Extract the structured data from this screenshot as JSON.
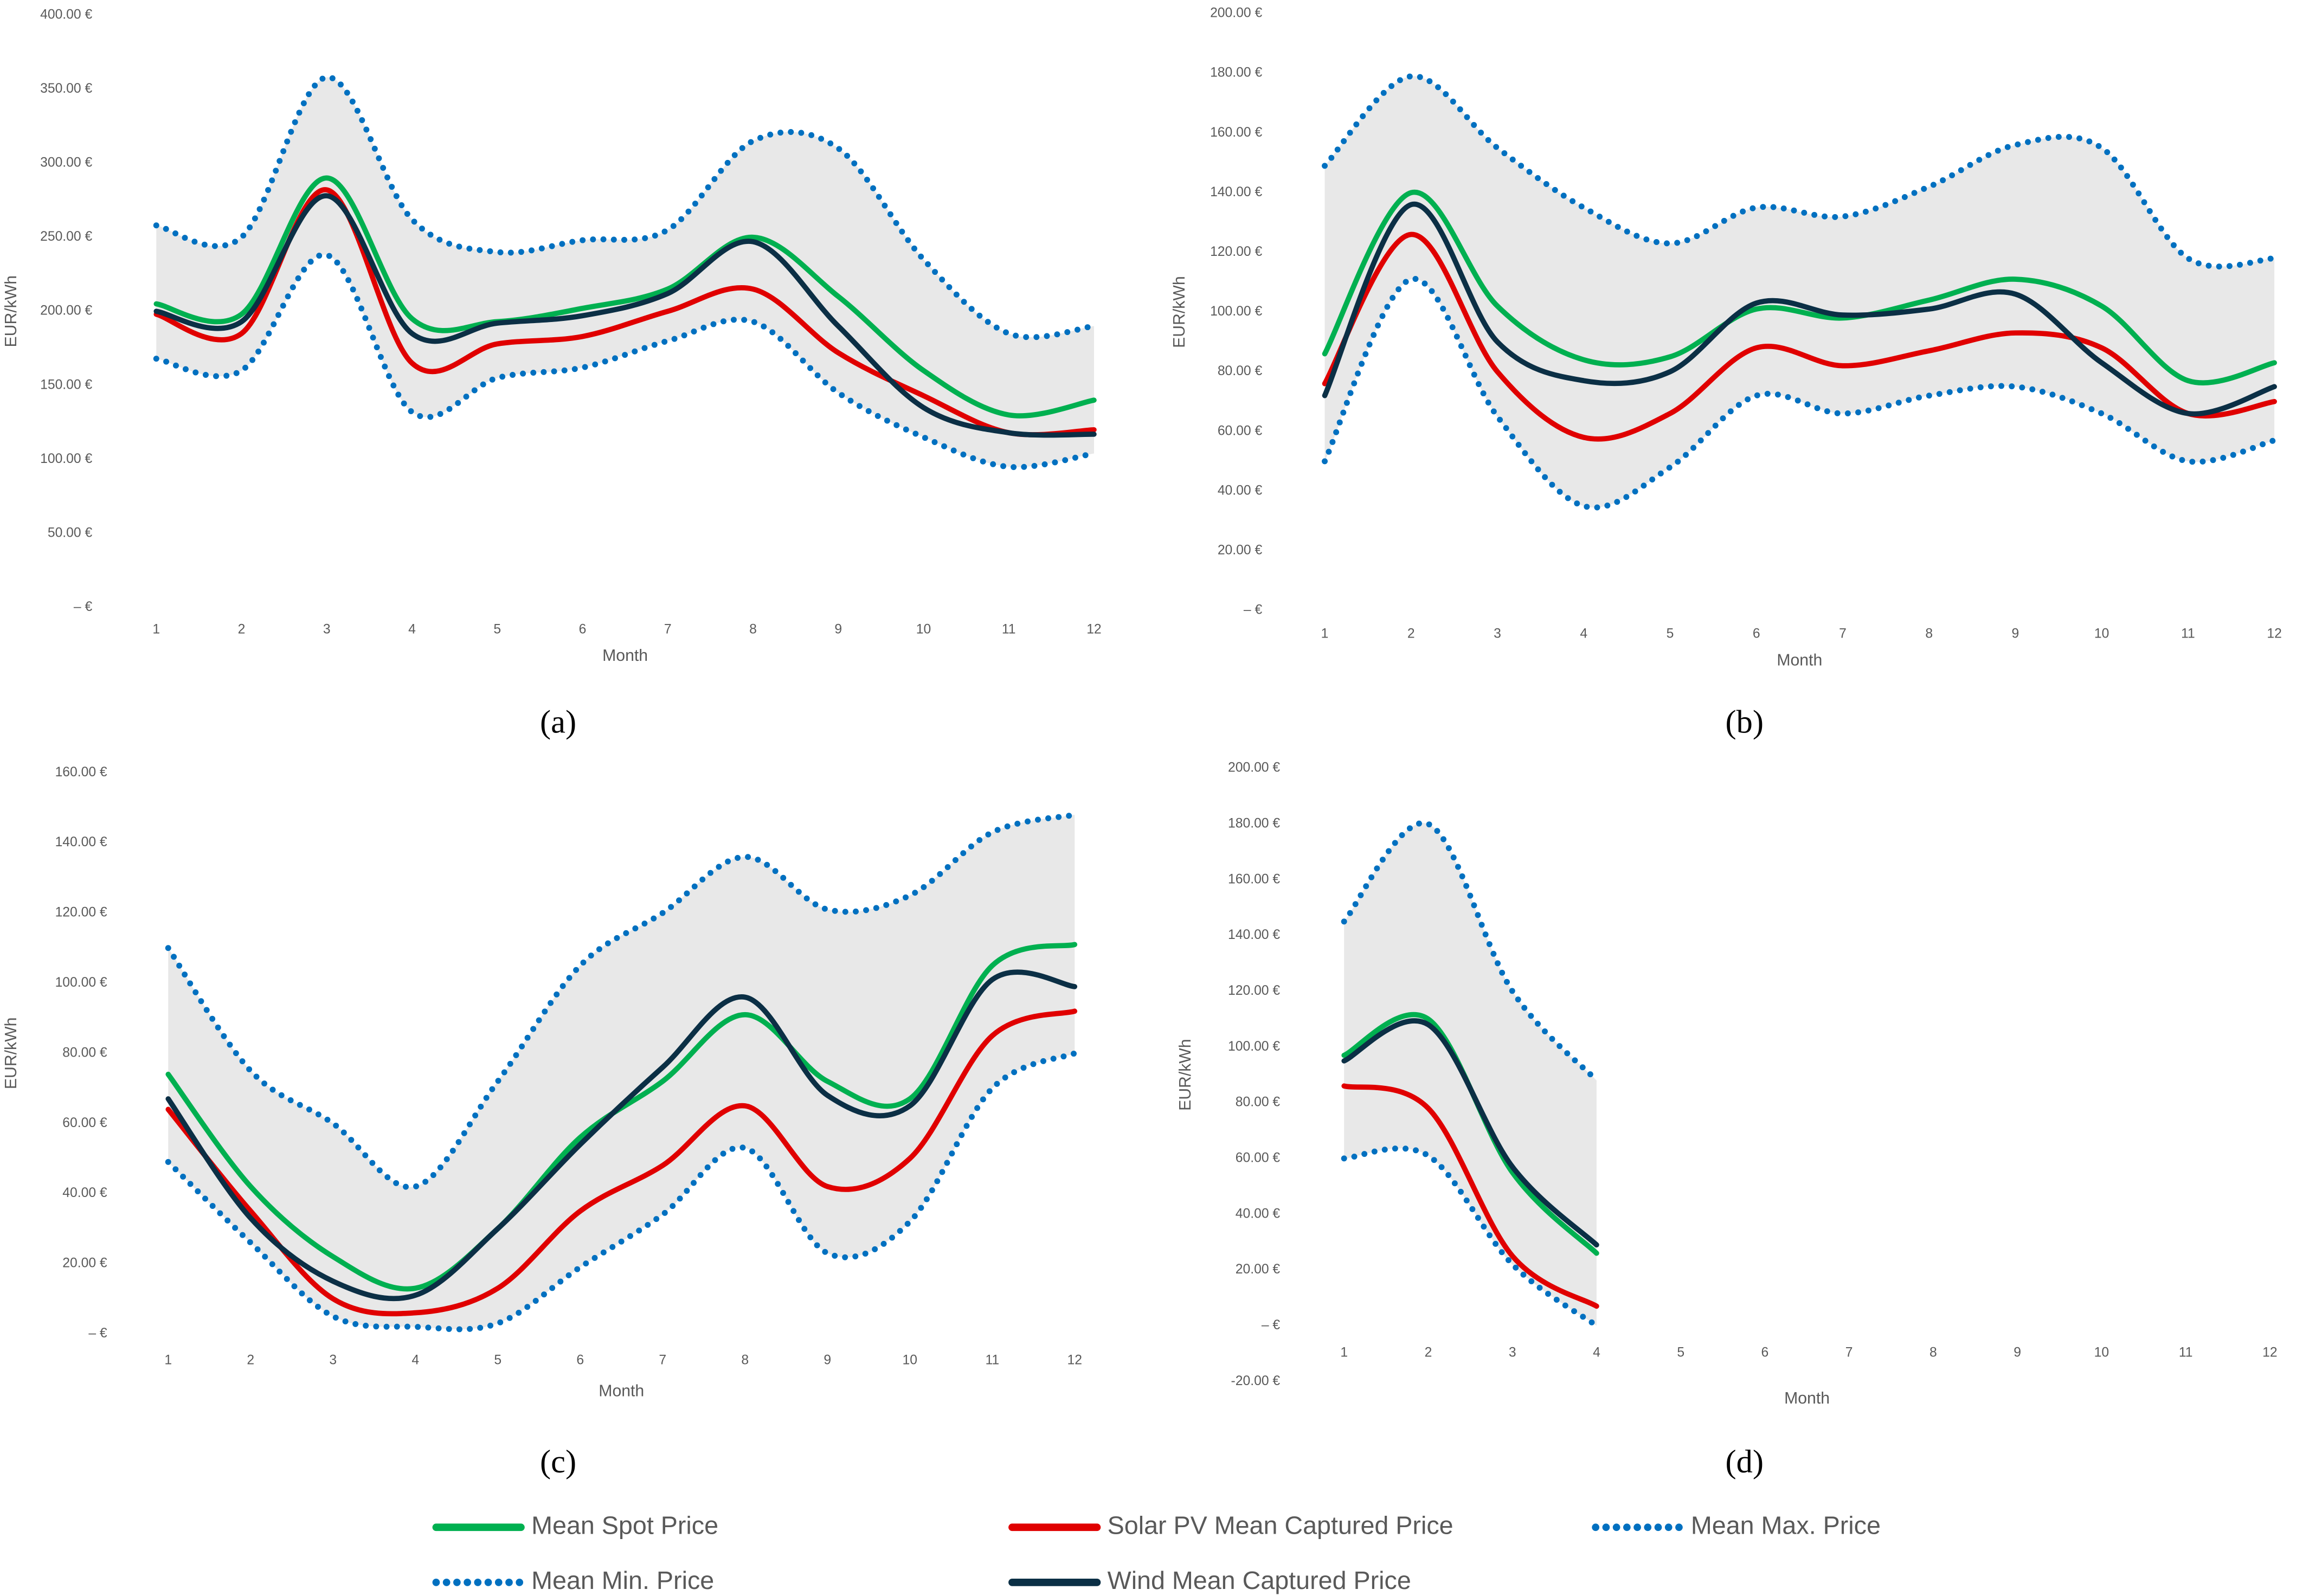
{
  "chart_data": [
    {
      "type": "line",
      "subtitle": "(a)",
      "x_label": "Month",
      "y_label": "EUR/kWh",
      "categories": [
        1,
        2,
        3,
        4,
        5,
        6,
        7,
        8,
        9,
        10,
        11,
        12
      ],
      "ylim": [
        0,
        400
      ],
      "yticks": [
        {
          "value": 0,
          "label": "– €"
        },
        {
          "value": 50,
          "label": "50.00 €"
        },
        {
          "value": 100,
          "label": "100.00 €"
        },
        {
          "value": 150,
          "label": "150.00 €"
        },
        {
          "value": 200,
          "label": "200.00 €"
        },
        {
          "value": 250,
          "label": "250.00 €"
        },
        {
          "value": 300,
          "label": "300.00 €"
        },
        {
          "value": 350,
          "label": "350.00 €"
        },
        {
          "value": 400,
          "label": "400.00 €"
        }
      ],
      "series": [
        {
          "values": [
            205,
            198,
            290,
            195,
            193,
            202,
            215,
            250,
            210,
            160,
            130,
            140
          ]
        },
        {
          "values": [
            198,
            185,
            282,
            165,
            178,
            183,
            200,
            215,
            172,
            143,
            118,
            120
          ]
        },
        {
          "values": [
            258,
            250,
            358,
            262,
            240,
            248,
            255,
            315,
            310,
            235,
            185,
            190
          ]
        },
        {
          "values": [
            168,
            160,
            238,
            132,
            155,
            162,
            180,
            193,
            145,
            115,
            95,
            104
          ]
        },
        {
          "values": [
            200,
            193,
            278,
            185,
            192,
            197,
            212,
            247,
            190,
            135,
            118,
            117
          ]
        }
      ]
    },
    {
      "type": "line",
      "subtitle": "(b)",
      "x_label": "Month",
      "y_label": "EUR/kWh",
      "categories": [
        1,
        2,
        3,
        4,
        5,
        6,
        7,
        8,
        9,
        10,
        11,
        12
      ],
      "ylim": [
        0,
        200
      ],
      "yticks": [
        {
          "value": 0,
          "label": "– €"
        },
        {
          "value": 20,
          "label": "20.00 €"
        },
        {
          "value": 40,
          "label": "40.00 €"
        },
        {
          "value": 60,
          "label": "60.00 €"
        },
        {
          "value": 80,
          "label": "80.00 €"
        },
        {
          "value": 100,
          "label": "100.00 €"
        },
        {
          "value": 120,
          "label": "120.00 €"
        },
        {
          "value": 140,
          "label": "140.00 €"
        },
        {
          "value": 160,
          "label": "160.00 €"
        },
        {
          "value": 180,
          "label": "180.00 €"
        },
        {
          "value": 200,
          "label": "200.00 €"
        }
      ],
      "series": [
        {
          "values": [
            86,
            140,
            102,
            84,
            85,
            101,
            98,
            104,
            111,
            102,
            77,
            83
          ]
        },
        {
          "values": [
            76,
            126,
            80,
            58,
            66,
            88,
            82,
            87,
            93,
            88,
            66,
            70
          ]
        },
        {
          "values": [
            149,
            179,
            155,
            135,
            123,
            135,
            132,
            142,
            156,
            155,
            118,
            118
          ]
        },
        {
          "values": [
            50,
            111,
            65,
            35,
            48,
            72,
            66,
            72,
            75,
            66,
            50,
            57
          ]
        },
        {
          "values": [
            72,
            136,
            90,
            77,
            80,
            103,
            99,
            101,
            106,
            83,
            66,
            75
          ]
        }
      ]
    },
    {
      "type": "line",
      "subtitle": "(c)",
      "x_label": "Month",
      "y_label": "EUR/kWh",
      "categories": [
        1,
        2,
        3,
        4,
        5,
        6,
        7,
        8,
        9,
        10,
        11,
        12
      ],
      "ylim": [
        0,
        160
      ],
      "yticks": [
        {
          "value": 0,
          "label": "– €"
        },
        {
          "value": 20,
          "label": "20.00 €"
        },
        {
          "value": 40,
          "label": "40.00 €"
        },
        {
          "value": 60,
          "label": "60.00 €"
        },
        {
          "value": 80,
          "label": "80.00 €"
        },
        {
          "value": 100,
          "label": "100.00 €"
        },
        {
          "value": 120,
          "label": "120.00 €"
        },
        {
          "value": 140,
          "label": "140.00 €"
        },
        {
          "value": 160,
          "label": "160.00 €"
        }
      ],
      "series": [
        {
          "values": [
            74,
            42,
            22,
            13,
            30,
            56,
            72,
            91,
            72,
            67,
            105,
            111
          ]
        },
        {
          "values": [
            64,
            35,
            10,
            6,
            13,
            35,
            48,
            65,
            42,
            50,
            85,
            92
          ]
        },
        {
          "values": [
            110,
            75,
            60,
            42,
            72,
            105,
            120,
            136,
            121,
            125,
            143,
            148
          ]
        },
        {
          "values": [
            49,
            26,
            5,
            2,
            3,
            19,
            34,
            53,
            23,
            32,
            70,
            80
          ]
        },
        {
          "values": [
            67,
            33,
            15,
            11,
            30,
            54,
            76,
            96,
            68,
            65,
            101,
            99
          ]
        }
      ]
    },
    {
      "type": "line",
      "subtitle": "(d)",
      "x_label": "Month",
      "y_label": "EUR/kWh",
      "categories": [
        1,
        2,
        3,
        4,
        5,
        6,
        7,
        8,
        9,
        10,
        11,
        12
      ],
      "ylim": [
        -20,
        200
      ],
      "yticks": [
        {
          "value": -20,
          "label": "-20.00 €"
        },
        {
          "value": 0,
          "label": "– €"
        },
        {
          "value": 20,
          "label": "20.00 €"
        },
        {
          "value": 40,
          "label": "40.00 €"
        },
        {
          "value": 60,
          "label": "60.00 €"
        },
        {
          "value": 80,
          "label": "80.00 €"
        },
        {
          "value": 100,
          "label": "100.00 €"
        },
        {
          "value": 120,
          "label": "120.00 €"
        },
        {
          "value": 140,
          "label": "140.00 €"
        },
        {
          "value": 160,
          "label": "160.00 €"
        },
        {
          "value": 180,
          "label": "180.00 €"
        },
        {
          "value": 200,
          "label": "200.00 €"
        }
      ],
      "series": [
        {
          "values": [
            97,
            110,
            55,
            26,
            null,
            null,
            null,
            null,
            null,
            null,
            null,
            null
          ]
        },
        {
          "values": [
            86,
            78,
            25,
            7,
            null,
            null,
            null,
            null,
            null,
            null,
            null,
            null
          ]
        },
        {
          "values": [
            145,
            180,
            120,
            88,
            null,
            null,
            null,
            null,
            null,
            null,
            null,
            null
          ]
        },
        {
          "values": [
            60,
            61,
            22,
            0,
            null,
            null,
            null,
            null,
            null,
            null,
            null,
            null
          ]
        },
        {
          "values": [
            95,
            108,
            57,
            29,
            null,
            null,
            null,
            null,
            null,
            null,
            null,
            null
          ]
        }
      ]
    }
  ],
  "legend": [
    {
      "name": "Mean Spot Price",
      "color": "#00b050",
      "style": "solid"
    },
    {
      "name": "Solar PV Mean Captured Price",
      "color": "#e00000",
      "style": "solid"
    },
    {
      "name": "Mean Max. Price",
      "color": "#0070c0",
      "style": "dotted"
    },
    {
      "name": "Mean Min. Price",
      "color": "#0070c0",
      "style": "dotted"
    },
    {
      "name": "Wind Mean Captured Price",
      "color": "#0b2f45",
      "style": "solid"
    }
  ],
  "band_fill": "#e8e8e8"
}
